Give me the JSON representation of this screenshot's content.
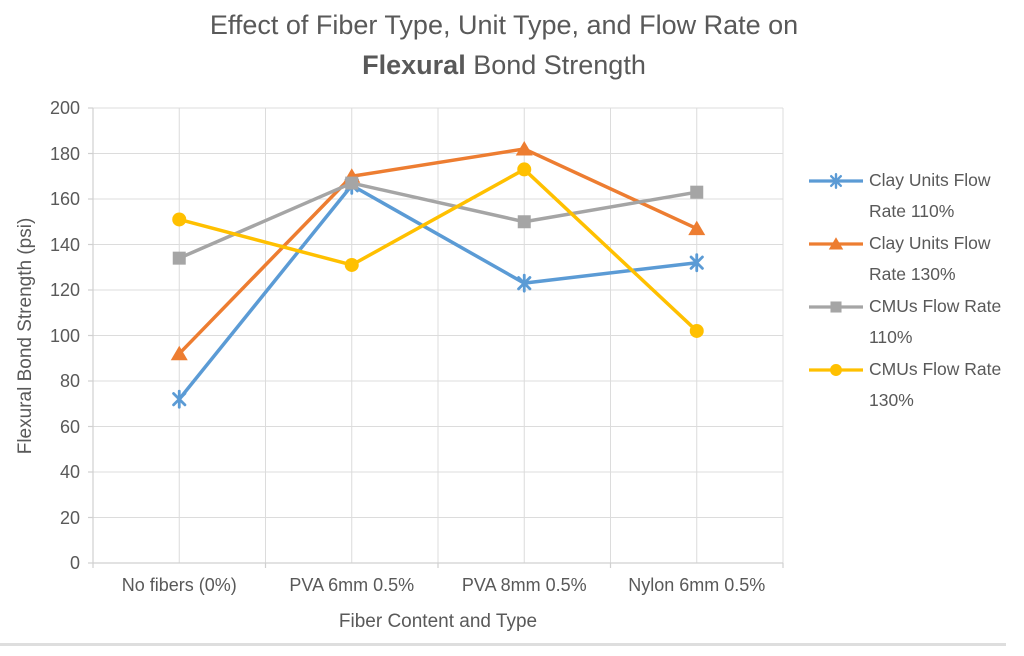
{
  "title": {
    "line1": "Effect of Fiber Type, Unit Type, and Flow Rate on",
    "line2_bold": "Flexural",
    "line2_rest": " Bond Strength"
  },
  "chart_data": {
    "type": "line",
    "title": "Effect of Fiber Type, Unit Type, and Flow Rate on Flexural Bond Strength",
    "xlabel": "Fiber Content and Type",
    "ylabel": "Flexural Bond Strength (psi)",
    "categories": [
      "No fibers (0%)",
      "PVA 6mm 0.5%",
      "PVA 8mm 0.5%",
      "Nylon 6mm 0.5%"
    ],
    "series": [
      {
        "name": "Clay Units Flow Rate 110%",
        "color": "#5B9BD5",
        "marker": "asterisk",
        "values": [
          72,
          166,
          123,
          132
        ]
      },
      {
        "name": "Clay Units Flow Rate 130%",
        "color": "#ED7D31",
        "marker": "triangle",
        "values": [
          92,
          170,
          182,
          147
        ]
      },
      {
        "name": "CMUs Flow Rate 110%",
        "color": "#A5A5A5",
        "marker": "square",
        "values": [
          134,
          167,
          150,
          163
        ]
      },
      {
        "name": "CMUs Flow Rate 130%",
        "color": "#FFC000",
        "marker": "circle",
        "values": [
          151,
          131,
          173,
          102
        ]
      }
    ],
    "ylim": [
      0,
      200
    ],
    "yticks": [
      0,
      20,
      40,
      60,
      80,
      100,
      120,
      140,
      160,
      180,
      200
    ],
    "grid": true,
    "legend_position": "right"
  },
  "colors": {
    "text": "#595959",
    "gridline": "#DCDCDC",
    "axis": "#D0D0D0"
  }
}
